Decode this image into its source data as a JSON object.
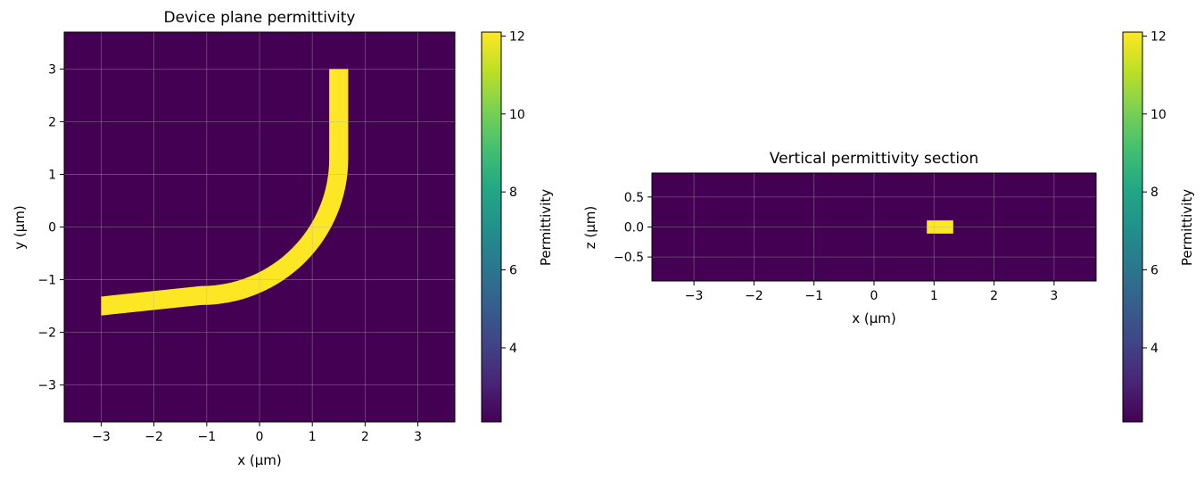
{
  "chart_data": [
    {
      "type": "heatmap",
      "title": "Device plane permittivity",
      "xlabel": "x (µm)",
      "ylabel": "y (µm)",
      "xlim": [
        -3.7,
        3.7
      ],
      "ylim": [
        -3.7,
        3.7
      ],
      "xticks": [
        -3,
        -2,
        -1,
        0,
        1,
        2,
        3
      ],
      "yticks": [
        -3,
        -2,
        -1,
        0,
        1,
        2,
        3
      ],
      "grid": true,
      "background_value": 2.1,
      "waveguide": {
        "value": 12.1,
        "width": 0.36,
        "horizontal_arm": {
          "x": [
            -3.0,
            -1.1
          ],
          "y_center": -1.5
        },
        "bend": {
          "center": [
            -1.1,
            1.3
          ],
          "radius": 2.6,
          "angle_deg": [
            -90,
            0
          ]
        },
        "vertical_arm": {
          "x_center": 1.5,
          "y": [
            1.3,
            3.0
          ]
        }
      },
      "colorbar": {
        "label": "Permittivity",
        "range": [
          2.1,
          12.1
        ],
        "ticks": [
          4,
          6,
          8,
          10,
          12
        ],
        "colormap": "viridis"
      }
    },
    {
      "type": "heatmap",
      "title": "Vertical permittivity section",
      "xlabel": "x (µm)",
      "ylabel": "z (µm)",
      "xlim": [
        -3.7,
        3.7
      ],
      "ylim": [
        -0.9,
        0.9
      ],
      "xticks": [
        -3,
        -2,
        -1,
        0,
        1,
        2,
        3
      ],
      "yticks": [
        -0.5,
        0.0,
        0.5
      ],
      "ytick_labels": [
        "−0.5",
        "0.0",
        "0.5"
      ],
      "grid": true,
      "background_value": 2.1,
      "core": {
        "value": 12.1,
        "x": [
          0.88,
          1.32
        ],
        "z": [
          -0.11,
          0.11
        ]
      },
      "colorbar": {
        "label": "Permittivity",
        "range": [
          2.1,
          12.1
        ],
        "ticks": [
          4,
          6,
          8,
          10,
          12
        ],
        "colormap": "viridis"
      }
    }
  ]
}
